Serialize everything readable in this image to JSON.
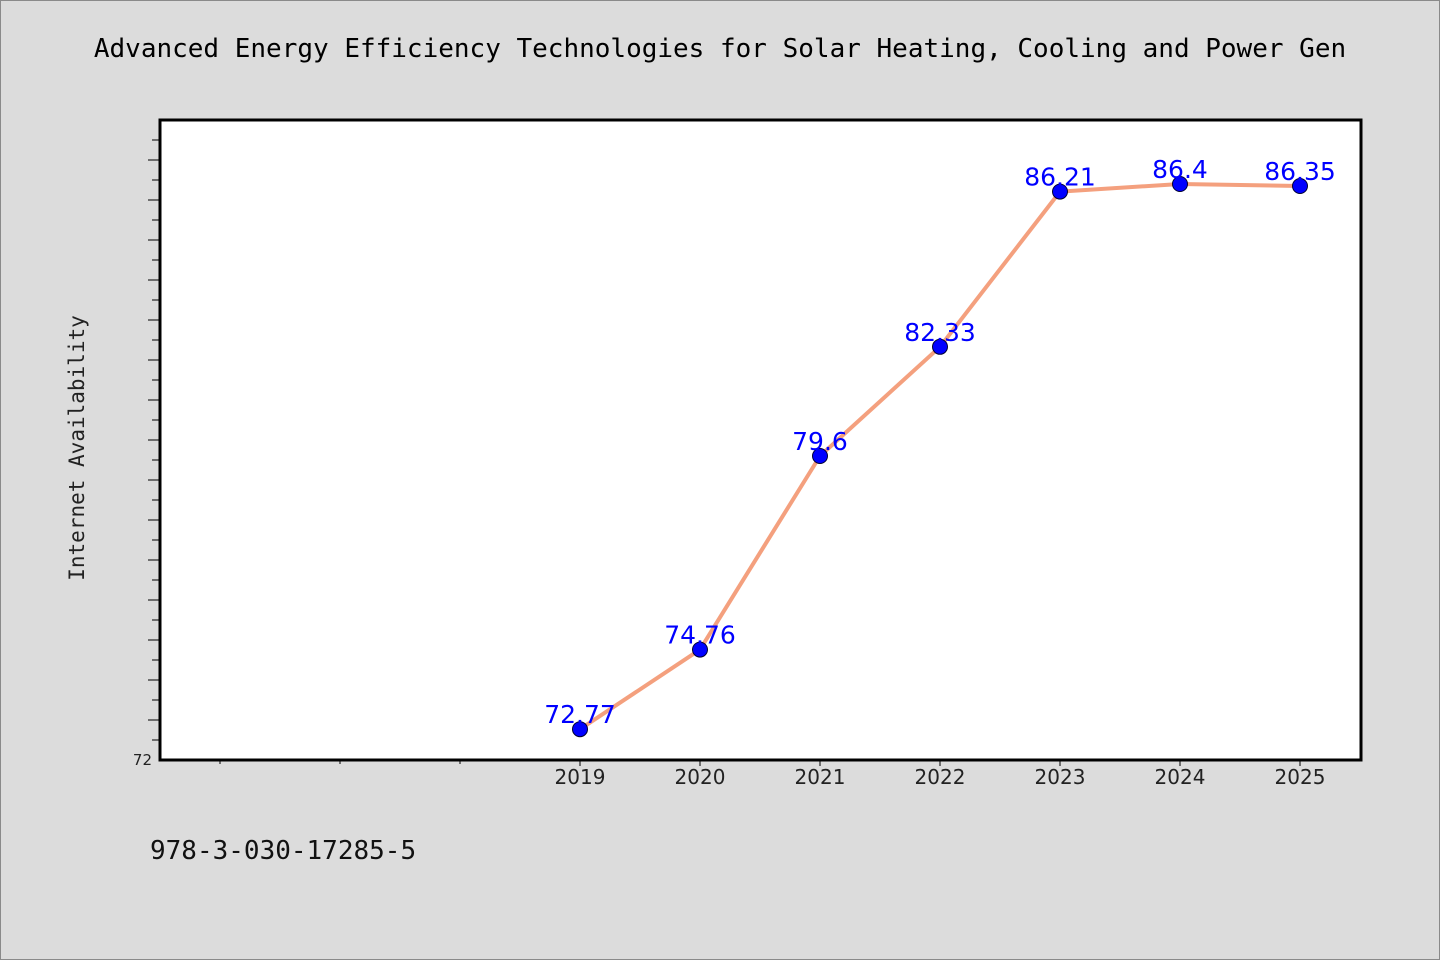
{
  "chart_data": {
    "type": "line",
    "title": "Advanced Energy Efficiency Technologies for Solar Heating, Cooling and Power Gen",
    "xlabel": "",
    "ylabel": "Internet Availability",
    "categories": [
      "2019",
      "2020",
      "2021",
      "2022",
      "2023",
      "2024",
      "2025"
    ],
    "series": [
      {
        "values": [
          72.77,
          74.76,
          79.6,
          82.33,
          86.21,
          86.4,
          86.35
        ]
      }
    ],
    "data_labels": [
      "72.77",
      "74.76",
      "79.6",
      "82.33",
      "86.21",
      "86.4",
      "86.35"
    ],
    "y_tick_labels": [
      "72"
    ],
    "ylim": [
      72,
      88
    ],
    "x_slots_before_first_category": 3,
    "grid": false,
    "legend": "none",
    "colors": {
      "line": "#f4a07e",
      "marker": "#0000ff",
      "data_label": "#0000ff",
      "background": "#dcdcdc",
      "plot_background": "#ffffff"
    }
  },
  "footer": {
    "isbn": "978-3-030-17285-5"
  }
}
